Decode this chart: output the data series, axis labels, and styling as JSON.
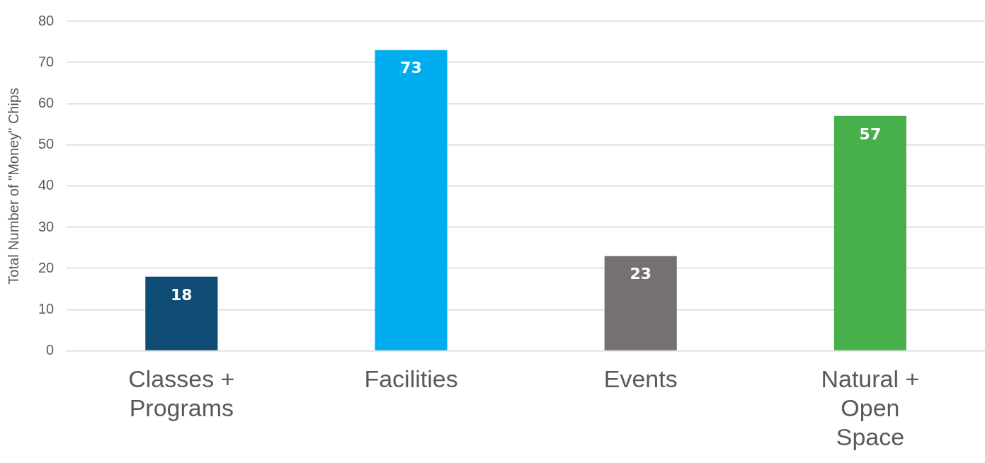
{
  "chart_data": {
    "type": "bar",
    "ylabel": "Total Number of \"Money\" Chips",
    "categories": [
      "Classes + Programs",
      "Facilities",
      "Events",
      "Natural + Open Space"
    ],
    "values": [
      18,
      73,
      23,
      57
    ],
    "colors": [
      "#0e4c75",
      "#00aeef",
      "#767171",
      "#47b04b"
    ],
    "ylim": [
      0,
      80
    ],
    "yticks": [
      0,
      10,
      20,
      30,
      40,
      50,
      60,
      70,
      80
    ],
    "grid": "y",
    "legend": false,
    "data_labels": true
  }
}
